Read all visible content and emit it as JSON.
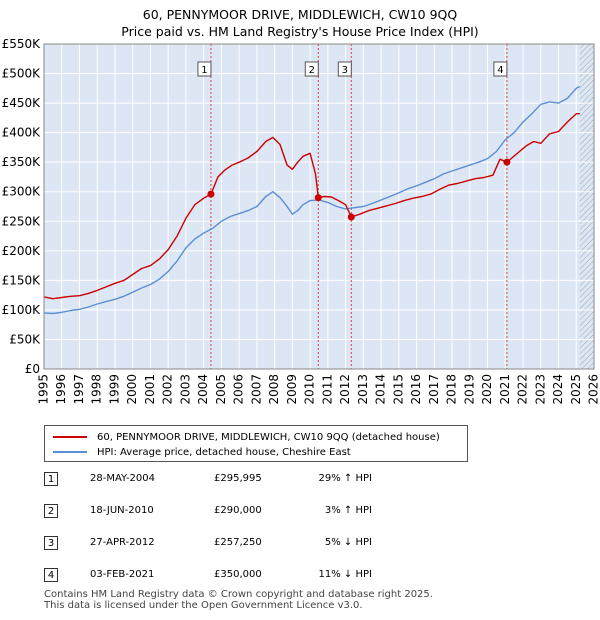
{
  "title": {
    "line1": "60, PENNYMOOR DRIVE, MIDDLEWICH, CW10 9QQ",
    "line2": "Price paid vs. HM Land Registry's House Price Index (HPI)"
  },
  "chart_data": {
    "type": "line",
    "title": "60, PENNYMOOR DRIVE, MIDDLEWICH, CW10 9QQ — Price paid vs. HM Land Registry's House Price Index (HPI)",
    "xlabel": "",
    "ylabel": "",
    "xlim": [
      1995,
      2026
    ],
    "ylim": [
      0,
      550000
    ],
    "y_ticks": [
      0,
      50000,
      100000,
      150000,
      200000,
      250000,
      300000,
      350000,
      400000,
      450000,
      500000,
      550000
    ],
    "y_tick_labels": [
      "£0",
      "£50K",
      "£100K",
      "£150K",
      "£200K",
      "£250K",
      "£300K",
      "£350K",
      "£400K",
      "£450K",
      "£500K",
      "£550K"
    ],
    "x_ticks": [
      1995,
      1996,
      1997,
      1998,
      1999,
      2000,
      2001,
      2002,
      2003,
      2004,
      2005,
      2006,
      2007,
      2008,
      2009,
      2010,
      2011,
      2012,
      2013,
      2014,
      2015,
      2016,
      2017,
      2018,
      2019,
      2020,
      2021,
      2022,
      2023,
      2024,
      2025,
      2026
    ],
    "grid": true,
    "plot_background": "#dde6f4",
    "forecast_hatch_from": 2025.2,
    "series": [
      {
        "name": "60, PENNYMOOR DRIVE, MIDDLEWICH, CW10 9QQ (detached house)",
        "color": "#cc0000",
        "x": [
          1995.0,
          1995.5,
          1996.0,
          1996.5,
          1997.0,
          1997.5,
          1998.0,
          1998.5,
          1999.0,
          1999.5,
          2000.0,
          2000.5,
          2001.0,
          2001.5,
          2002.0,
          2002.5,
          2003.0,
          2003.5,
          2004.0,
          2004.41,
          2004.8,
          2005.2,
          2005.6,
          2006.0,
          2006.5,
          2007.0,
          2007.5,
          2007.9,
          2008.3,
          2008.7,
          2009.0,
          2009.3,
          2009.6,
          2010.0,
          2010.3,
          2010.46,
          2010.8,
          2011.2,
          2011.6,
          2012.0,
          2012.32,
          2012.8,
          2013.3,
          2013.8,
          2014.3,
          2014.8,
          2015.3,
          2015.8,
          2016.3,
          2016.8,
          2017.3,
          2017.8,
          2018.3,
          2018.8,
          2019.3,
          2019.8,
          2020.3,
          2020.7,
          2021.09,
          2021.4,
          2021.8,
          2022.2,
          2022.6,
          2023.0,
          2023.5,
          2024.0,
          2024.5,
          2025.0,
          2025.2
        ],
        "values": [
          122000,
          119000,
          121000,
          123000,
          124000,
          128000,
          133000,
          139000,
          145000,
          150000,
          160000,
          170000,
          175000,
          186000,
          202000,
          225000,
          255000,
          278000,
          289000,
          295995,
          325000,
          337000,
          345000,
          350000,
          357000,
          368000,
          385000,
          392000,
          380000,
          345000,
          338000,
          350000,
          360000,
          365000,
          330000,
          290000,
          292000,
          291000,
          285000,
          278000,
          257250,
          262000,
          268000,
          272000,
          276000,
          280000,
          285000,
          289000,
          292000,
          296000,
          304000,
          311000,
          314000,
          318000,
          322000,
          324000,
          328000,
          355000,
          350000,
          358000,
          368000,
          378000,
          385000,
          382000,
          398000,
          402000,
          418000,
          432000,
          432000
        ]
      },
      {
        "name": "HPI: Average price, detached house, Cheshire East",
        "color": "#5b8fd4",
        "x": [
          1995.0,
          1995.5,
          1996.0,
          1996.5,
          1997.0,
          1997.5,
          1998.0,
          1998.5,
          1999.0,
          1999.5,
          2000.0,
          2000.5,
          2001.0,
          2001.5,
          2002.0,
          2002.5,
          2003.0,
          2003.5,
          2004.0,
          2004.5,
          2005.0,
          2005.5,
          2006.0,
          2006.5,
          2007.0,
          2007.5,
          2007.9,
          2008.3,
          2008.7,
          2009.0,
          2009.3,
          2009.6,
          2010.0,
          2010.5,
          2011.0,
          2011.5,
          2012.0,
          2012.5,
          2013.0,
          2013.5,
          2014.0,
          2014.5,
          2015.0,
          2015.5,
          2016.0,
          2016.5,
          2017.0,
          2017.5,
          2018.0,
          2018.5,
          2019.0,
          2019.5,
          2020.0,
          2020.5,
          2021.0,
          2021.5,
          2022.0,
          2022.5,
          2023.0,
          2023.5,
          2024.0,
          2024.5,
          2025.0,
          2025.2
        ],
        "values": [
          95000,
          94000,
          96000,
          99000,
          101000,
          105000,
          110000,
          114000,
          118000,
          123000,
          130000,
          137000,
          143000,
          152000,
          165000,
          183000,
          205000,
          220000,
          230000,
          238000,
          250000,
          258000,
          263000,
          268000,
          275000,
          292000,
          300000,
          290000,
          275000,
          262000,
          268000,
          278000,
          285000,
          286000,
          282000,
          275000,
          271000,
          273000,
          275000,
          280000,
          286000,
          292000,
          298000,
          305000,
          310000,
          316000,
          322000,
          330000,
          335000,
          340000,
          345000,
          350000,
          356000,
          368000,
          388000,
          400000,
          418000,
          432000,
          448000,
          452000,
          450000,
          458000,
          475000,
          478000
        ]
      }
    ],
    "sale_markers": [
      {
        "label": "1",
        "x": 2004.41,
        "value": 295995
      },
      {
        "label": "2",
        "x": 2010.46,
        "value": 290000
      },
      {
        "label": "3",
        "x": 2012.32,
        "value": 257250
      },
      {
        "label": "4",
        "x": 2021.09,
        "value": 350000
      }
    ]
  },
  "legend": {
    "property_label": "60, PENNYMOOR DRIVE, MIDDLEWICH, CW10 9QQ (detached house)",
    "hpi_label": "HPI: Average price, detached house, Cheshire East"
  },
  "sales": [
    {
      "num": "1",
      "date": "28-MAY-2004",
      "price": "£295,995",
      "hpi": "29% ↑ HPI"
    },
    {
      "num": "2",
      "date": "18-JUN-2010",
      "price": "£290,000",
      "hpi": "3% ↑ HPI"
    },
    {
      "num": "3",
      "date": "27-APR-2012",
      "price": "£257,250",
      "hpi": "5% ↓ HPI"
    },
    {
      "num": "4",
      "date": "03-FEB-2021",
      "price": "£350,000",
      "hpi": "11% ↓ HPI"
    }
  ],
  "footer": {
    "line1": "Contains HM Land Registry data © Crown copyright and database right 2025.",
    "line2": "This data is licensed under the Open Government Licence v3.0."
  }
}
